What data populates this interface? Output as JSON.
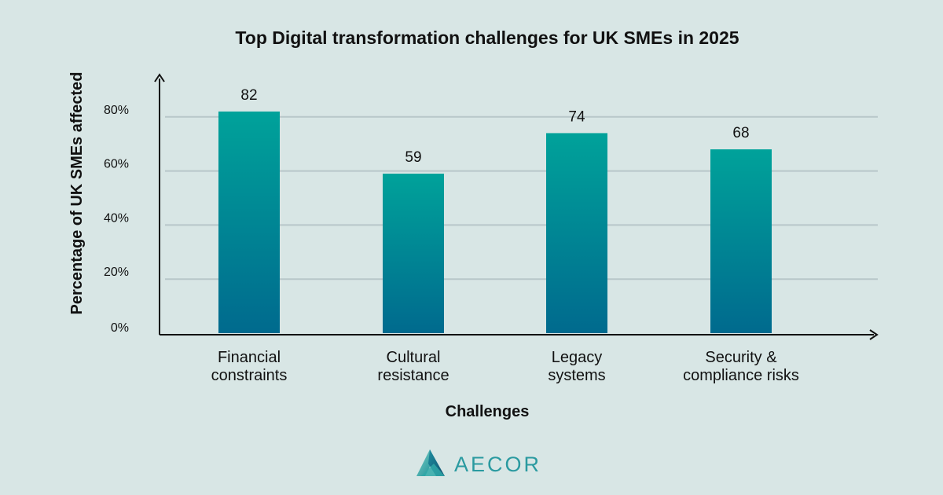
{
  "brand": {
    "logo_text": "AECOR",
    "colors": {
      "teal": "#2a9aa0",
      "dark": "#0f4a66"
    }
  },
  "chart_data": {
    "type": "bar",
    "title": "Top Digital transformation challenges for UK SMEs in 2025",
    "xlabel": "Challenges",
    "ylabel": "Percentage of UK SMEs affected",
    "categories": [
      [
        "Financial",
        "constraints"
      ],
      [
        "Cultural",
        "resistance"
      ],
      [
        "Legacy",
        "systems"
      ],
      [
        "Security &",
        "compliance risks"
      ]
    ],
    "values": [
      82,
      59,
      74,
      68
    ],
    "ylim": [
      0,
      100
    ],
    "yticks": [
      0,
      20,
      40,
      60,
      80
    ],
    "ytick_labels": [
      "0%",
      "20%",
      "40%",
      "60%",
      "80%"
    ],
    "grid": true,
    "legend": "none",
    "colors": {
      "bar_top": "#00a29a",
      "bar_bottom": "#006a8e",
      "grid": "#b7c7c9",
      "axis": "#111111"
    }
  }
}
